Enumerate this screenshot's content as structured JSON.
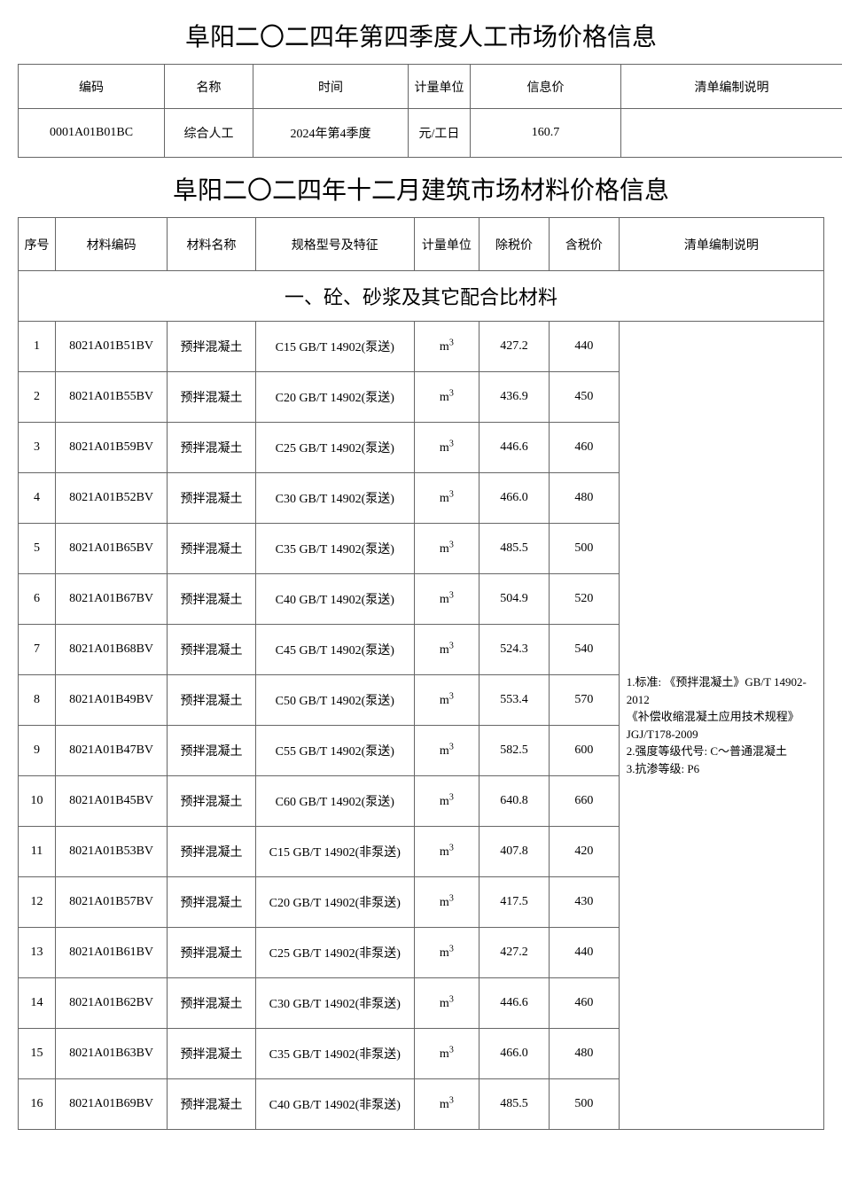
{
  "labor": {
    "title": "阜阳二〇二四年第四季度人工市场价格信息",
    "headers": {
      "code": "编码",
      "name": "名称",
      "time": "时间",
      "unit": "计量单位",
      "price": "信息价",
      "note": "清单编制说明"
    },
    "row": {
      "code": "0001A01B01BC",
      "name": "综合人工",
      "time": "2024年第4季度",
      "unit": "元/工日",
      "price": "160.7",
      "note": ""
    }
  },
  "material": {
    "title": "阜阳二〇二四年十二月建筑市场材料价格信息",
    "headers": {
      "idx": "序号",
      "code": "材料编码",
      "name": "材料名称",
      "spec": "规格型号及特征",
      "unit": "计量单位",
      "price1": "除税价",
      "price2": "含税价",
      "note": "清单编制说明"
    },
    "section1": {
      "title": "一、砼、砂浆及其它配合比材料",
      "note": "1.标准: 《预拌混凝土》GB/T 14902-2012\n《补偿收缩混凝土应用技术规程》JGJ/T178-2009\n2.强度等级代号: C～普通混凝土\n3.抗渗等级: P6",
      "rows": [
        {
          "idx": "1",
          "code": "8021A01B51BV",
          "name": "预拌混凝土",
          "spec": "C15  GB/T 14902(泵送)",
          "unit": "m³",
          "p1": "427.2",
          "p2": "440"
        },
        {
          "idx": "2",
          "code": "8021A01B55BV",
          "name": "预拌混凝土",
          "spec": "C20  GB/T 14902(泵送)",
          "unit": "m³",
          "p1": "436.9",
          "p2": "450"
        },
        {
          "idx": "3",
          "code": "8021A01B59BV",
          "name": "预拌混凝土",
          "spec": "C25  GB/T 14902(泵送)",
          "unit": "m³",
          "p1": "446.6",
          "p2": "460"
        },
        {
          "idx": "4",
          "code": "8021A01B52BV",
          "name": "预拌混凝土",
          "spec": "C30  GB/T 14902(泵送)",
          "unit": "m³",
          "p1": "466.0",
          "p2": "480"
        },
        {
          "idx": "5",
          "code": "8021A01B65BV",
          "name": "预拌混凝土",
          "spec": "C35  GB/T 14902(泵送)",
          "unit": "m³",
          "p1": "485.5",
          "p2": "500"
        },
        {
          "idx": "6",
          "code": "8021A01B67BV",
          "name": "预拌混凝土",
          "spec": "C40  GB/T 14902(泵送)",
          "unit": "m³",
          "p1": "504.9",
          "p2": "520"
        },
        {
          "idx": "7",
          "code": "8021A01B68BV",
          "name": "预拌混凝土",
          "spec": "C45  GB/T 14902(泵送)",
          "unit": "m³",
          "p1": "524.3",
          "p2": "540"
        },
        {
          "idx": "8",
          "code": "8021A01B49BV",
          "name": "预拌混凝土",
          "spec": "C50  GB/T 14902(泵送)",
          "unit": "m³",
          "p1": "553.4",
          "p2": "570"
        },
        {
          "idx": "9",
          "code": "8021A01B47BV",
          "name": "预拌混凝土",
          "spec": "C55  GB/T 14902(泵送)",
          "unit": "m³",
          "p1": "582.5",
          "p2": "600"
        },
        {
          "idx": "10",
          "code": "8021A01B45BV",
          "name": "预拌混凝土",
          "spec": "C60  GB/T 14902(泵送)",
          "unit": "m³",
          "p1": "640.8",
          "p2": "660"
        },
        {
          "idx": "11",
          "code": "8021A01B53BV",
          "name": "预拌混凝土",
          "spec": "C15 GB/T 14902(非泵送)",
          "unit": "m³",
          "p1": "407.8",
          "p2": "420"
        },
        {
          "idx": "12",
          "code": "8021A01B57BV",
          "name": "预拌混凝土",
          "spec": "C20 GB/T 14902(非泵送)",
          "unit": "m³",
          "p1": "417.5",
          "p2": "430"
        },
        {
          "idx": "13",
          "code": "8021A01B61BV",
          "name": "预拌混凝土",
          "spec": "C25 GB/T 14902(非泵送)",
          "unit": "m³",
          "p1": "427.2",
          "p2": "440"
        },
        {
          "idx": "14",
          "code": "8021A01B62BV",
          "name": "预拌混凝土",
          "spec": "C30 GB/T 14902(非泵送)",
          "unit": "m³",
          "p1": "446.6",
          "p2": "460"
        },
        {
          "idx": "15",
          "code": "8021A01B63BV",
          "name": "预拌混凝土",
          "spec": "C35 GB/T 14902(非泵送)",
          "unit": "m³",
          "p1": "466.0",
          "p2": "480"
        },
        {
          "idx": "16",
          "code": "8021A01B69BV",
          "name": "预拌混凝土",
          "spec": "C40 GB/T 14902(非泵送)",
          "unit": "m³",
          "p1": "485.5",
          "p2": "500"
        }
      ]
    }
  },
  "styling": {
    "border_color": "#666666",
    "background_color": "#ffffff",
    "title_fontsize": 28,
    "header_fontsize": 14,
    "cell_fontsize": 14,
    "section_header_fontsize": 22
  }
}
